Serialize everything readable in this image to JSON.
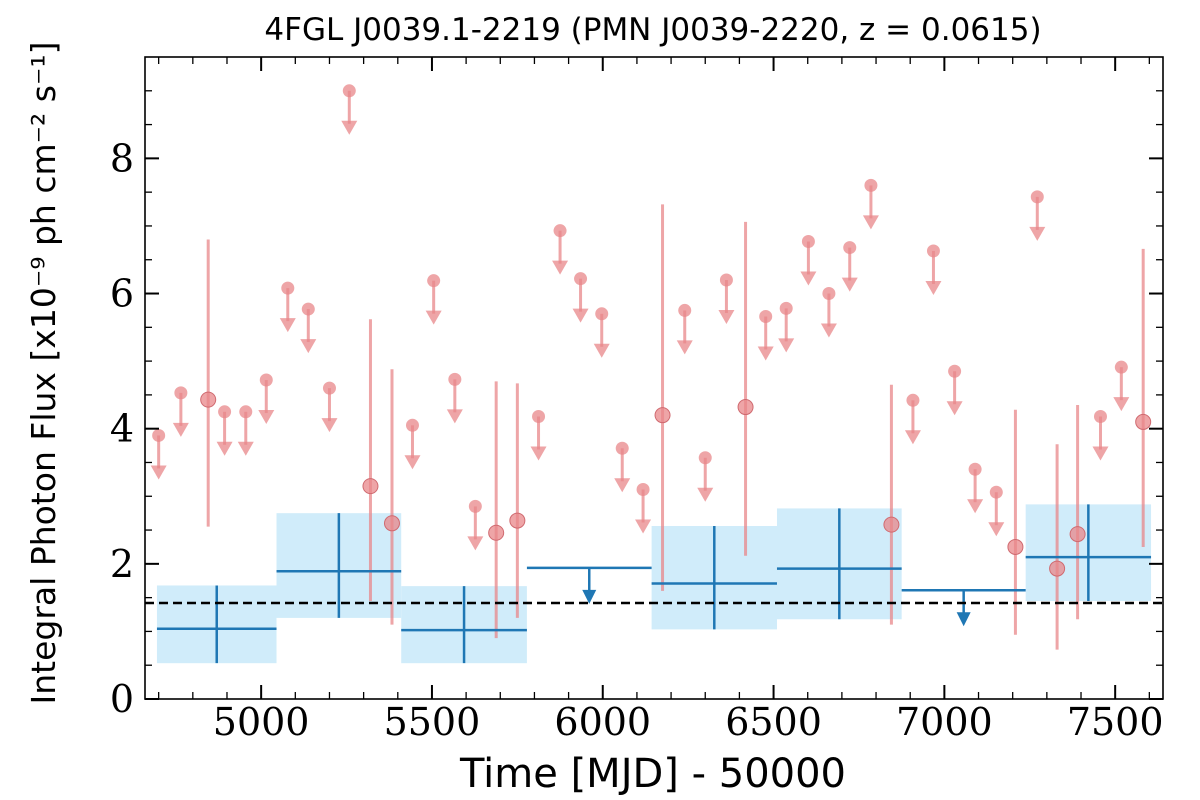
{
  "chart_data": {
    "type": "scatter",
    "title": "4FGL J0039.1-2219 (PMN J0039-2220, z = 0.0615)",
    "xlabel": "Time [MJD] - 50000",
    "ylabel": "Integral Photon Flux [x10⁻⁹ ph cm⁻² s⁻¹]",
    "xlim": [
      4660,
      7640
    ],
    "ylim": [
      0,
      9.5
    ],
    "x_ticks": [
      5000,
      5500,
      6000,
      6500,
      7000,
      7500
    ],
    "y_ticks": [
      0,
      2,
      4,
      6,
      8
    ],
    "grid": false,
    "reference_line": {
      "y": 1.42,
      "style": "dashed",
      "color": "#000000"
    },
    "series": [
      {
        "color": "#e8878a",
        "detections": [
          {
            "x": 4845,
            "y": 4.43,
            "low": 2.55,
            "high": 6.8
          },
          {
            "x": 5320,
            "y": 3.15,
            "low": 1.45,
            "high": 5.62
          },
          {
            "x": 5383,
            "y": 2.6,
            "low": 1.1,
            "high": 4.88
          },
          {
            "x": 5688,
            "y": 2.46,
            "low": 0.9,
            "high": 4.7
          },
          {
            "x": 5750,
            "y": 2.64,
            "low": 1.2,
            "high": 4.67
          },
          {
            "x": 6175,
            "y": 4.2,
            "low": 1.6,
            "high": 7.32
          },
          {
            "x": 6418,
            "y": 4.32,
            "low": 2.12,
            "high": 7.06
          },
          {
            "x": 6845,
            "y": 2.58,
            "low": 1.1,
            "high": 4.65
          },
          {
            "x": 7208,
            "y": 2.25,
            "low": 0.95,
            "high": 4.28
          },
          {
            "x": 7330,
            "y": 1.93,
            "low": 0.73,
            "high": 3.77
          },
          {
            "x": 7390,
            "y": 2.44,
            "low": 1.18,
            "high": 4.35
          },
          {
            "x": 7582,
            "y": 4.1,
            "low": 2.25,
            "high": 6.66
          }
        ],
        "upper_limits": [
          {
            "x": 4700,
            "y": 3.9
          },
          {
            "x": 4765,
            "y": 4.53
          },
          {
            "x": 4893,
            "y": 4.25
          },
          {
            "x": 4955,
            "y": 4.25
          },
          {
            "x": 5015,
            "y": 4.72
          },
          {
            "x": 5078,
            "y": 6.08
          },
          {
            "x": 5138,
            "y": 5.77
          },
          {
            "x": 5200,
            "y": 4.6
          },
          {
            "x": 5258,
            "y": 9.0
          },
          {
            "x": 5443,
            "y": 4.05
          },
          {
            "x": 5505,
            "y": 6.19
          },
          {
            "x": 5567,
            "y": 4.73
          },
          {
            "x": 5627,
            "y": 2.85
          },
          {
            "x": 5812,
            "y": 4.18
          },
          {
            "x": 5875,
            "y": 6.93
          },
          {
            "x": 5935,
            "y": 6.22
          },
          {
            "x": 5997,
            "y": 5.7
          },
          {
            "x": 6057,
            "y": 3.71
          },
          {
            "x": 6118,
            "y": 3.1
          },
          {
            "x": 6240,
            "y": 5.75
          },
          {
            "x": 6300,
            "y": 3.57
          },
          {
            "x": 6362,
            "y": 6.2
          },
          {
            "x": 6477,
            "y": 5.66
          },
          {
            "x": 6537,
            "y": 5.78
          },
          {
            "x": 6602,
            "y": 6.77
          },
          {
            "x": 6662,
            "y": 6.0
          },
          {
            "x": 6723,
            "y": 6.68
          },
          {
            "x": 6785,
            "y": 7.6
          },
          {
            "x": 6908,
            "y": 4.42
          },
          {
            "x": 6968,
            "y": 6.63
          },
          {
            "x": 7030,
            "y": 4.85
          },
          {
            "x": 7090,
            "y": 3.4
          },
          {
            "x": 7152,
            "y": 3.06
          },
          {
            "x": 7272,
            "y": 7.43
          },
          {
            "x": 7457,
            "y": 4.18
          },
          {
            "x": 7518,
            "y": 4.91
          }
        ]
      },
      {
        "color": "#1f77b4",
        "band_color": "#d0ecfa",
        "detections": [
          {
            "x0": 4695,
            "x1": 5045,
            "y": 1.04,
            "low": 0.53,
            "high": 1.68
          },
          {
            "x0": 5045,
            "x1": 5410,
            "y": 1.89,
            "low": 1.2,
            "high": 2.75
          },
          {
            "x0": 5410,
            "x1": 5778,
            "y": 1.02,
            "low": 0.53,
            "high": 1.67
          },
          {
            "x0": 6143,
            "x1": 6510,
            "y": 1.71,
            "low": 1.03,
            "high": 2.56
          },
          {
            "x0": 6510,
            "x1": 6875,
            "y": 1.93,
            "low": 1.18,
            "high": 2.82
          },
          {
            "x0": 7238,
            "x1": 7605,
            "y": 2.1,
            "low": 1.45,
            "high": 2.88
          }
        ],
        "upper_limits": [
          {
            "x0": 5778,
            "x1": 6143,
            "y": 1.94
          },
          {
            "x0": 6875,
            "x1": 7238,
            "y": 1.61
          }
        ]
      }
    ]
  }
}
